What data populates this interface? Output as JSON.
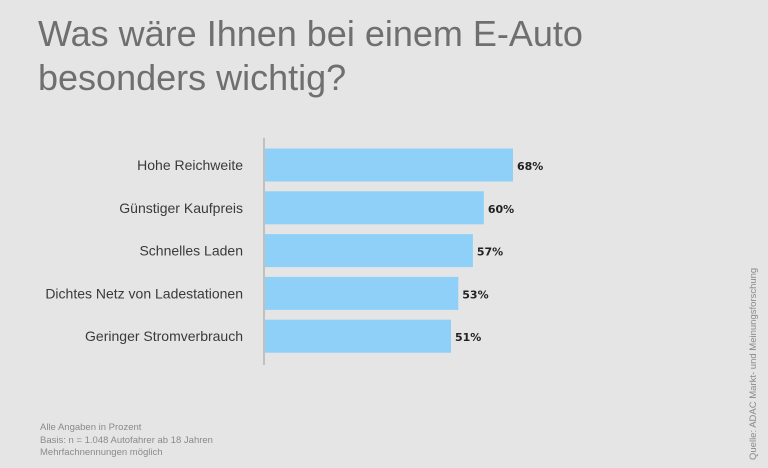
{
  "title": "Was wäre Ihnen bei einem E-Auto besonders wichtig?",
  "notes": [
    "Alle Angaben in Prozent",
    "Basis: n = 1.048 Autofahrer ab 18 Jahren",
    "Mehrfachnennungen möglich"
  ],
  "source": "Quelle: ADAC Markt- und Meinungsforschung",
  "chart_data": {
    "type": "bar",
    "orientation": "horizontal",
    "title": "Was wäre Ihnen bei einem E-Auto besonders wichtig?",
    "categories": [
      "Hohe Reichweite",
      "Günstiger Kaufpreis",
      "Schnelles Laden",
      "Dichtes Netz von Ladestationen",
      "Geringer Stromverbrauch"
    ],
    "values": [
      68,
      60,
      57,
      53,
      51
    ],
    "data_labels": [
      "68%",
      "60%",
      "57%",
      "53%",
      "51%"
    ],
    "unit": "%",
    "xlim": [
      0,
      100
    ],
    "grid": false,
    "bar_color": "#8fd0f8"
  }
}
